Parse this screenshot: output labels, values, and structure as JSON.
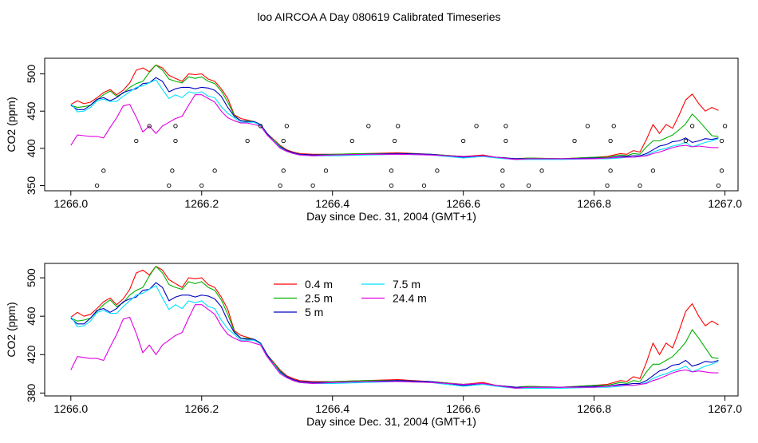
{
  "figure": {
    "title": "loo AIRCOA A  Day 080619  Calibrated Timeseries"
  },
  "chart_data": [
    {
      "type": "line",
      "xlabel": "Day since Dec. 31, 2004 (GMT+1)",
      "ylabel": "CO2 (ppm)",
      "xlim": [
        1265.96,
        1267.02
      ],
      "ylim": [
        343,
        521
      ],
      "xticks": [
        1266.0,
        1266.2,
        1266.4,
        1266.6,
        1266.8,
        1267.0
      ],
      "xtick_labels": [
        "1266.0",
        "1266.2",
        "1266.4",
        "1266.6",
        "1266.8",
        "1267.0"
      ],
      "yticks": [
        350,
        400,
        450,
        500
      ],
      "ytick_labels": [
        "350",
        "400",
        "450",
        "500"
      ],
      "grid": false,
      "legend": null,
      "series": [
        {
          "name": "0.4 m",
          "color": "#ff0000",
          "x": [
            1266.0,
            1266.01,
            1266.02,
            1266.03,
            1266.04,
            1266.05,
            1266.06,
            1266.07,
            1266.08,
            1266.09,
            1266.1,
            1266.11,
            1266.12,
            1266.13,
            1266.14,
            1266.15,
            1266.16,
            1266.17,
            1266.18,
            1266.19,
            1266.2,
            1266.21,
            1266.22,
            1266.23,
            1266.24,
            1266.25,
            1266.26,
            1266.27,
            1266.28,
            1266.29,
            1266.3,
            1266.31,
            1266.32,
            1266.33,
            1266.34,
            1266.35,
            1266.37,
            1266.4,
            1266.45,
            1266.5,
            1266.55,
            1266.6,
            1266.63,
            1266.65,
            1266.68,
            1266.7,
            1266.75,
            1266.8,
            1266.82,
            1266.84,
            1266.85,
            1266.86,
            1266.87,
            1266.88,
            1266.89,
            1266.9,
            1266.91,
            1266.92,
            1266.93,
            1266.94,
            1266.95,
            1266.96,
            1266.97,
            1266.98,
            1266.99
          ],
          "y": [
            459,
            464,
            460,
            462,
            468,
            475,
            479,
            472,
            478,
            488,
            505,
            508,
            503,
            512,
            508,
            498,
            494,
            490,
            500,
            499,
            500,
            493,
            490,
            480,
            467,
            445,
            440,
            438,
            436,
            432,
            420,
            412,
            404,
            398,
            395,
            393,
            392,
            392,
            393,
            394,
            392,
            389,
            391,
            388,
            386,
            387,
            386,
            388,
            389,
            393,
            392,
            397,
            395,
            412,
            432,
            420,
            432,
            427,
            445,
            465,
            473,
            460,
            450,
            455,
            451
          ]
        },
        {
          "name": "2.5 m",
          "color": "#00b000",
          "x": [
            1266.0,
            1266.01,
            1266.02,
            1266.03,
            1266.04,
            1266.05,
            1266.06,
            1266.07,
            1266.08,
            1266.09,
            1266.1,
            1266.11,
            1266.12,
            1266.13,
            1266.14,
            1266.15,
            1266.16,
            1266.17,
            1266.18,
            1266.19,
            1266.2,
            1266.21,
            1266.22,
            1266.23,
            1266.24,
            1266.25,
            1266.26,
            1266.27,
            1266.28,
            1266.29,
            1266.3,
            1266.31,
            1266.32,
            1266.33,
            1266.34,
            1266.35,
            1266.37,
            1266.4,
            1266.45,
            1266.5,
            1266.55,
            1266.6,
            1266.63,
            1266.65,
            1266.68,
            1266.7,
            1266.75,
            1266.8,
            1266.82,
            1266.84,
            1266.85,
            1266.86,
            1266.87,
            1266.88,
            1266.89,
            1266.9,
            1266.91,
            1266.92,
            1266.93,
            1266.94,
            1266.95,
            1266.96,
            1266.97,
            1266.98,
            1266.99
          ],
          "y": [
            458,
            455,
            456,
            458,
            465,
            472,
            477,
            470,
            474,
            482,
            487,
            490,
            502,
            512,
            505,
            493,
            490,
            488,
            496,
            494,
            496,
            490,
            487,
            477,
            462,
            444,
            437,
            437,
            436,
            432,
            420,
            411,
            403,
            397,
            394,
            392,
            391,
            392,
            393,
            393,
            392,
            389,
            390,
            388,
            386,
            387,
            386,
            388,
            388,
            391,
            390,
            393,
            392,
            402,
            410,
            410,
            414,
            418,
            425,
            433,
            446,
            437,
            427,
            417,
            416
          ]
        },
        {
          "name": "5 m",
          "color": "#0000c0",
          "x": [
            1266.0,
            1266.01,
            1266.02,
            1266.03,
            1266.04,
            1266.05,
            1266.06,
            1266.07,
            1266.08,
            1266.09,
            1266.1,
            1266.11,
            1266.12,
            1266.13,
            1266.14,
            1266.15,
            1266.16,
            1266.17,
            1266.18,
            1266.19,
            1266.2,
            1266.21,
            1266.22,
            1266.23,
            1266.24,
            1266.25,
            1266.26,
            1266.27,
            1266.28,
            1266.29,
            1266.3,
            1266.31,
            1266.32,
            1266.33,
            1266.34,
            1266.35,
            1266.37,
            1266.4,
            1266.45,
            1266.5,
            1266.55,
            1266.6,
            1266.63,
            1266.65,
            1266.68,
            1266.7,
            1266.75,
            1266.8,
            1266.82,
            1266.84,
            1266.85,
            1266.86,
            1266.87,
            1266.88,
            1266.89,
            1266.9,
            1266.91,
            1266.92,
            1266.93,
            1266.94,
            1266.95,
            1266.96,
            1266.97,
            1266.98,
            1266.99
          ],
          "y": [
            458,
            452,
            452,
            458,
            466,
            468,
            464,
            468,
            475,
            478,
            480,
            487,
            488,
            495,
            490,
            476,
            480,
            482,
            482,
            480,
            482,
            481,
            478,
            470,
            455,
            443,
            437,
            436,
            436,
            432,
            420,
            410,
            402,
            397,
            394,
            392,
            391,
            391,
            392,
            393,
            392,
            388,
            390,
            388,
            386,
            386,
            386,
            387,
            387,
            389,
            389,
            390,
            390,
            393,
            398,
            403,
            405,
            409,
            410,
            414,
            408,
            410,
            413,
            412,
            414
          ]
        },
        {
          "name": "7.5 m",
          "color": "#00e0ff",
          "x": [
            1266.0,
            1266.01,
            1266.02,
            1266.03,
            1266.04,
            1266.05,
            1266.06,
            1266.07,
            1266.08,
            1266.09,
            1266.1,
            1266.11,
            1266.12,
            1266.13,
            1266.14,
            1266.15,
            1266.16,
            1266.17,
            1266.18,
            1266.19,
            1266.2,
            1266.21,
            1266.22,
            1266.23,
            1266.24,
            1266.25,
            1266.26,
            1266.27,
            1266.28,
            1266.29,
            1266.3,
            1266.31,
            1266.32,
            1266.33,
            1266.34,
            1266.35,
            1266.37,
            1266.4,
            1266.45,
            1266.5,
            1266.55,
            1266.6,
            1266.63,
            1266.65,
            1266.68,
            1266.7,
            1266.75,
            1266.8,
            1266.82,
            1266.84,
            1266.85,
            1266.86,
            1266.87,
            1266.88,
            1266.89,
            1266.9,
            1266.91,
            1266.92,
            1266.93,
            1266.94,
            1266.95,
            1266.96,
            1266.97,
            1266.98,
            1266.99
          ],
          "y": [
            460,
            449,
            450,
            455,
            464,
            466,
            463,
            463,
            470,
            476,
            482,
            484,
            488,
            492,
            479,
            467,
            472,
            468,
            476,
            474,
            476,
            470,
            468,
            456,
            447,
            441,
            435,
            435,
            435,
            431,
            418,
            410,
            401,
            396,
            393,
            391,
            390,
            390,
            391,
            392,
            391,
            387,
            389,
            387,
            385,
            385,
            385,
            386,
            386,
            387,
            388,
            388,
            389,
            391,
            395,
            398,
            400,
            403,
            405,
            408,
            402,
            405,
            408,
            410,
            413
          ]
        },
        {
          "name": "24.4 m",
          "color": "#e000e0",
          "x": [
            1266.0,
            1266.01,
            1266.02,
            1266.03,
            1266.04,
            1266.05,
            1266.06,
            1266.07,
            1266.08,
            1266.09,
            1266.1,
            1266.11,
            1266.12,
            1266.13,
            1266.14,
            1266.15,
            1266.16,
            1266.17,
            1266.18,
            1266.19,
            1266.2,
            1266.21,
            1266.22,
            1266.23,
            1266.24,
            1266.25,
            1266.26,
            1266.27,
            1266.28,
            1266.29,
            1266.3,
            1266.31,
            1266.32,
            1266.33,
            1266.34,
            1266.35,
            1266.37,
            1266.4,
            1266.45,
            1266.5,
            1266.55,
            1266.6,
            1266.63,
            1266.65,
            1266.68,
            1266.7,
            1266.75,
            1266.8,
            1266.82,
            1266.84,
            1266.85,
            1266.86,
            1266.87,
            1266.88,
            1266.89,
            1266.9,
            1266.91,
            1266.92,
            1266.93,
            1266.94,
            1266.95,
            1266.96,
            1266.97,
            1266.98,
            1266.99
          ],
          "y": [
            404,
            418,
            417,
            416,
            416,
            414,
            428,
            441,
            457,
            459,
            442,
            422,
            430,
            420,
            430,
            435,
            440,
            443,
            458,
            472,
            472,
            467,
            462,
            450,
            441,
            437,
            434,
            434,
            432,
            430,
            418,
            409,
            400,
            396,
            393,
            391,
            390,
            391,
            392,
            392,
            391,
            389,
            390,
            388,
            385,
            386,
            386,
            386,
            387,
            388,
            388,
            388,
            389,
            390,
            393,
            395,
            398,
            401,
            403,
            404,
            402,
            403,
            402,
            401,
            401
          ]
        },
        {
          "name": "",
          "color": "#000000",
          "mode": "markers",
          "x": [
            1266.04,
            1266.05,
            1266.1,
            1266.12,
            1266.15,
            1266.155,
            1266.16,
            1266.16,
            1266.2,
            1266.22,
            1266.27,
            1266.29,
            1266.32,
            1266.325,
            1266.325,
            1266.33,
            1266.37,
            1266.39,
            1266.43,
            1266.455,
            1266.49,
            1266.49,
            1266.495,
            1266.5,
            1266.54,
            1266.56,
            1266.6,
            1266.62,
            1266.66,
            1266.66,
            1266.665,
            1266.665,
            1266.7,
            1266.72,
            1266.77,
            1266.79,
            1266.82,
            1266.825,
            1266.825,
            1266.83,
            1266.87,
            1266.89,
            1266.94,
            1266.95,
            1266.99,
            1266.995,
            1266.995,
            1267.0
          ],
          "y": [
            350,
            370,
            410,
            430,
            350,
            370,
            410,
            430,
            350,
            370,
            410,
            430,
            350,
            370,
            410,
            430,
            350,
            370,
            410,
            430,
            350,
            370,
            410,
            430,
            350,
            370,
            410,
            430,
            350,
            370,
            410,
            430,
            350,
            370,
            410,
            430,
            350,
            370,
            410,
            430,
            350,
            370,
            410,
            430,
            350,
            370,
            410,
            430
          ]
        }
      ]
    },
    {
      "type": "line",
      "xlabel": "Day since Dec. 31, 2004 (GMT+1)",
      "ylabel": "CO2 (ppm)",
      "xlim": [
        1265.96,
        1267.02
      ],
      "ylim": [
        377,
        515
      ],
      "xticks": [
        1266.0,
        1266.2,
        1266.4,
        1266.6,
        1266.8,
        1267.0
      ],
      "xtick_labels": [
        "1266.0",
        "1266.2",
        "1266.4",
        "1266.6",
        "1266.8",
        "1267.0"
      ],
      "yticks": [
        380,
        420,
        460,
        500
      ],
      "ytick_labels": [
        "380",
        "420",
        "460",
        "500"
      ],
      "grid": false,
      "legend": "top-left",
      "series": [
        {
          "name": "0.4 m",
          "color": "#ff0000",
          "ref": 0
        },
        {
          "name": "2.5 m",
          "color": "#00b000",
          "ref": 1
        },
        {
          "name": "5 m",
          "color": "#0000c0",
          "ref": 2
        },
        {
          "name": "7.5 m",
          "color": "#00e0ff",
          "ref": 3
        },
        {
          "name": "24.4 m",
          "color": "#e000e0",
          "ref": 4
        }
      ]
    }
  ]
}
